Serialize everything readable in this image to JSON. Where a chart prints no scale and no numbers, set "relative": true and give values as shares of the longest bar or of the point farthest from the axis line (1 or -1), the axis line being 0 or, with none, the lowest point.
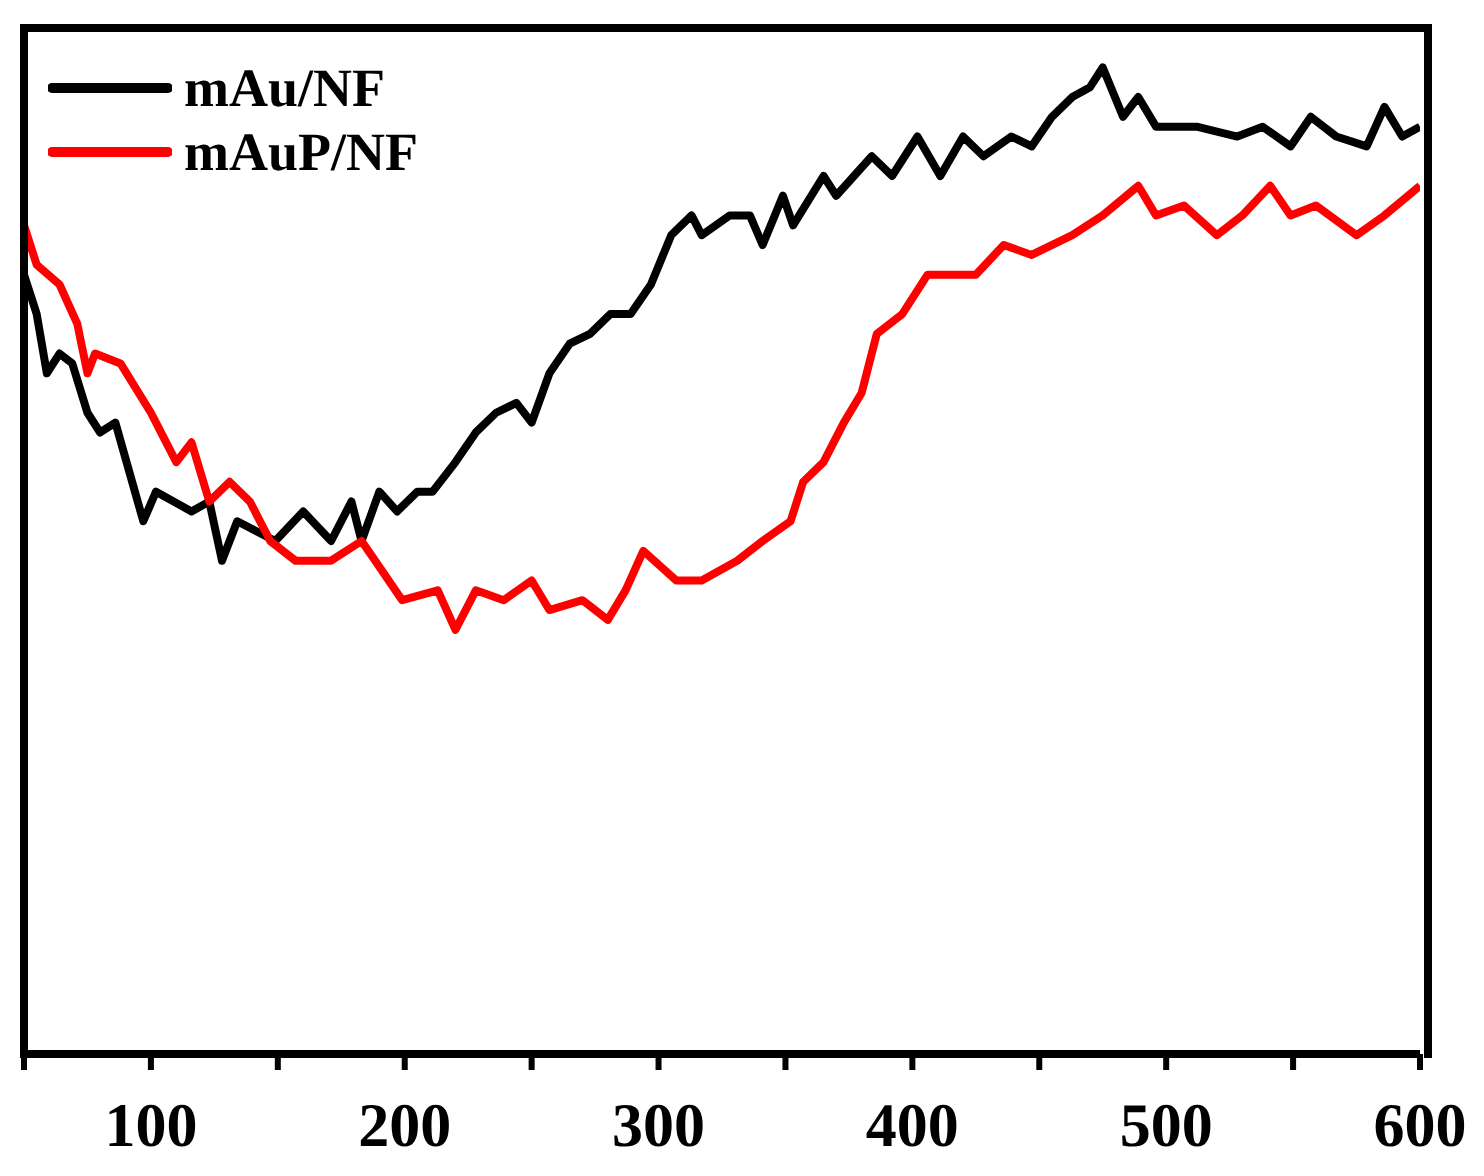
{
  "chart_data": {
    "type": "line",
    "relative": true,
    "xlim": [
      50,
      600
    ],
    "xticks": [
      {
        "value": 50,
        "label": null
      },
      100,
      {
        "value": 150,
        "label": null
      },
      200,
      {
        "value": 250,
        "label": null
      },
      300,
      {
        "value": 350,
        "label": null
      },
      400,
      {
        "value": 450,
        "label": null
      },
      500,
      {
        "value": 550,
        "label": null
      },
      600
    ],
    "legend": "top left",
    "marker": "none",
    "line_style": "solid",
    "grid": false,
    "series": [
      {
        "name": "mAu/NF",
        "color": "#000000",
        "x": [
          50,
          55,
          59,
          64,
          69,
          75,
          80,
          86,
          97,
          102,
          116,
          123,
          128,
          134,
          149,
          160,
          171,
          179,
          183,
          190,
          197,
          205,
          211,
          220,
          228,
          236,
          244,
          250,
          257,
          265,
          273,
          281,
          289,
          297,
          305,
          313,
          317,
          328,
          336,
          341,
          349,
          353,
          365,
          370,
          384,
          392,
          402,
          411,
          420,
          428,
          439,
          447,
          455,
          463,
          470,
          475,
          483,
          489,
          496,
          512,
          528,
          538,
          549,
          557,
          567,
          579,
          586,
          593,
          600
        ],
        "values": [
          0.79,
          0.75,
          0.69,
          0.71,
          0.7,
          0.65,
          0.63,
          0.64,
          0.54,
          0.57,
          0.55,
          0.56,
          0.5,
          0.54,
          0.52,
          0.55,
          0.52,
          0.56,
          0.52,
          0.57,
          0.55,
          0.57,
          0.57,
          0.6,
          0.63,
          0.65,
          0.66,
          0.64,
          0.69,
          0.72,
          0.73,
          0.75,
          0.75,
          0.78,
          0.83,
          0.85,
          0.83,
          0.85,
          0.85,
          0.82,
          0.87,
          0.84,
          0.89,
          0.87,
          0.91,
          0.89,
          0.93,
          0.89,
          0.93,
          0.91,
          0.93,
          0.92,
          0.95,
          0.97,
          0.98,
          1.0,
          0.95,
          0.97,
          0.94,
          0.94,
          0.93,
          0.94,
          0.92,
          0.95,
          0.93,
          0.92,
          0.96,
          0.93,
          0.94
        ]
      },
      {
        "name": "mAuP/NF",
        "color": "#ff0000",
        "x": [
          50,
          55,
          64,
          71,
          75,
          78,
          88,
          100,
          110,
          116,
          123,
          131,
          139,
          147,
          157,
          171,
          183,
          191,
          199,
          213,
          220,
          228,
          239,
          250,
          257,
          270,
          280,
          287,
          294,
          307,
          317,
          331,
          341,
          352,
          357,
          365,
          373,
          380,
          386,
          396,
          406,
          415,
          425,
          436,
          447,
          463,
          475,
          489,
          496,
          507,
          520,
          530,
          541,
          549,
          559,
          575,
          586,
          600
        ],
        "values": [
          0.84,
          0.8,
          0.78,
          0.74,
          0.69,
          0.71,
          0.7,
          0.65,
          0.6,
          0.62,
          0.56,
          0.58,
          0.56,
          0.52,
          0.5,
          0.5,
          0.52,
          0.49,
          0.46,
          0.47,
          0.43,
          0.47,
          0.46,
          0.48,
          0.45,
          0.46,
          0.44,
          0.47,
          0.51,
          0.48,
          0.48,
          0.5,
          0.52,
          0.54,
          0.58,
          0.6,
          0.64,
          0.67,
          0.73,
          0.75,
          0.79,
          0.79,
          0.79,
          0.82,
          0.81,
          0.83,
          0.85,
          0.88,
          0.85,
          0.86,
          0.83,
          0.85,
          0.88,
          0.85,
          0.86,
          0.83,
          0.85,
          0.88
        ]
      }
    ]
  }
}
